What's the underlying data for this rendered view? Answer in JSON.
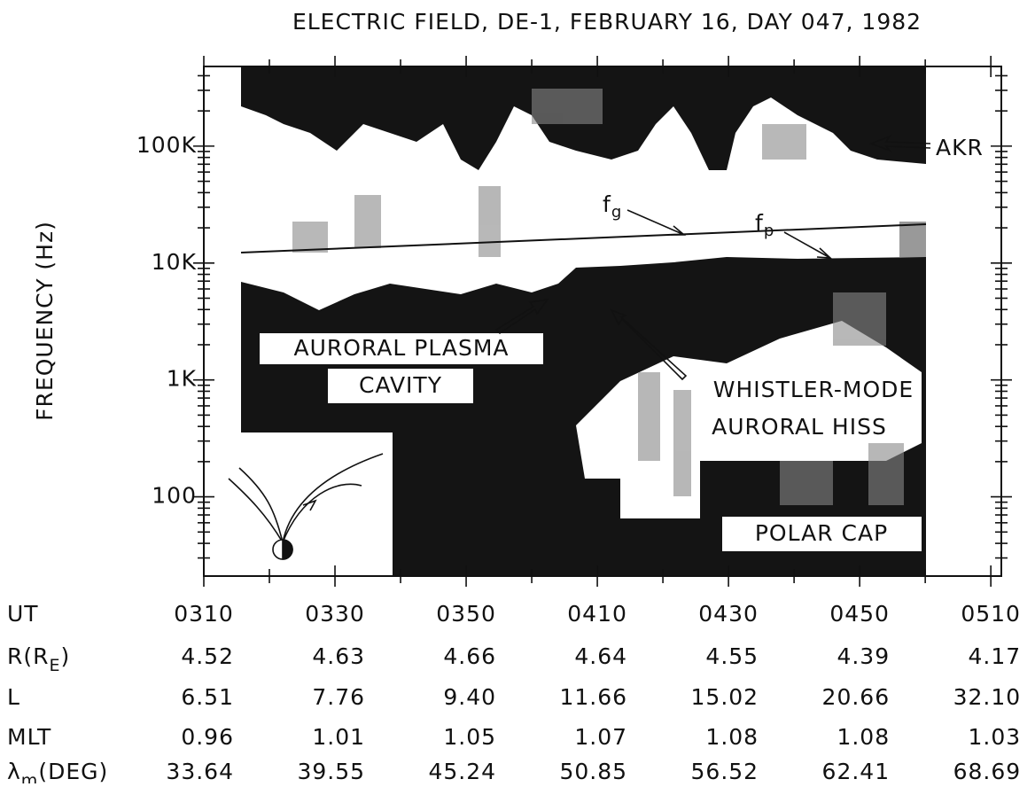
{
  "chart_data": {
    "type": "spectrogram",
    "title": "ELECTRIC FIELD, DE-1, FEBRUARY 16, DAY 047, 1982",
    "y_label": "FREQUENCY (Hz)",
    "log_y": true,
    "xlim": [
      190,
      311.6
    ],
    "xticks": [
      {
        "value": 190,
        "label": "0310"
      },
      {
        "value": 210,
        "label": "0330"
      },
      {
        "value": 230,
        "label": "0350"
      },
      {
        "value": 250,
        "label": "0410"
      },
      {
        "value": 270,
        "label": "0430"
      },
      {
        "value": 290,
        "label": "0450"
      },
      {
        "value": 310,
        "label": "0510"
      }
    ],
    "ylim": [
      21,
      480000
    ],
    "yticks": [
      100,
      {
        "value": 1000,
        "label": "1K"
      },
      {
        "value": 10000,
        "label": "10K"
      },
      {
        "value": 100000,
        "label": "100K"
      }
    ],
    "annotations": {
      "akr": "AKR",
      "fg_main": "f",
      "fg_sub": "g",
      "fp_main": "f",
      "fp_sub": "p",
      "cavity_1": "AURORAL PLASMA",
      "cavity_2": "CAVITY",
      "hiss_1": "WHISTLER-MODE",
      "hiss_2": "AURORAL HISS",
      "polar_cap": "POLAR CAP"
    },
    "x_row_label": "UT",
    "ephemeris": [
      {
        "label": "R(R",
        "sub": "E",
        "end": ")",
        "values": [
          "4.52",
          "4.63",
          "4.66",
          "4.64",
          "4.55",
          "4.39",
          "4.17"
        ]
      },
      {
        "label": "L",
        "sub": "",
        "end": "",
        "values": [
          "6.51",
          "7.76",
          "9.40",
          "11.66",
          "15.02",
          "20.66",
          "32.10"
        ]
      },
      {
        "label": "MLT",
        "sub": "",
        "end": "",
        "values": [
          "0.96",
          "1.01",
          "1.05",
          "1.07",
          "1.08",
          "1.08",
          "1.03"
        ]
      },
      {
        "label": "λ",
        "sub": "m",
        "end": "(DEG)",
        "values": [
          "33.64",
          "39.55",
          "45.24",
          "50.85",
          "56.52",
          "62.41",
          "68.69"
        ]
      }
    ]
  }
}
